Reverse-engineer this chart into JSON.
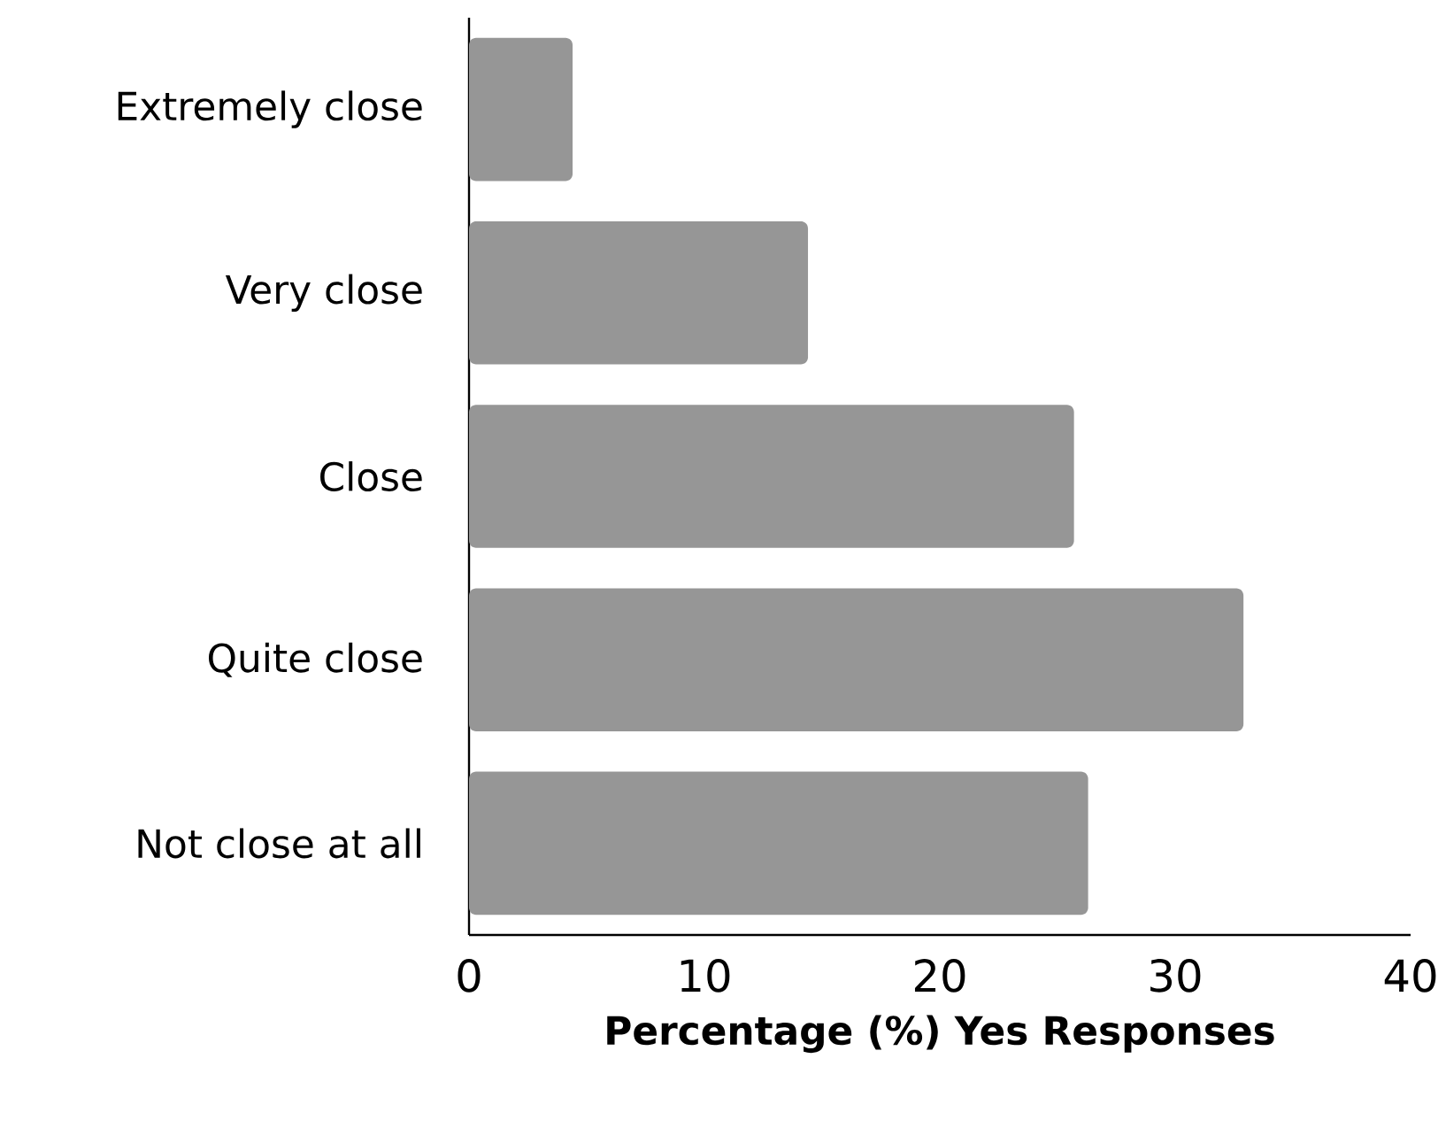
{
  "chart_data": {
    "type": "bar",
    "orientation": "horizontal",
    "xlabel": "Percentage (%) Yes Responses",
    "categories": [
      "Extremely close",
      "Very close",
      "Close",
      "Quite close",
      "Not close at all"
    ],
    "values": [
      4.4,
      14.4,
      25.7,
      32.9,
      26.3
    ],
    "color": "#969696",
    "xlim": [
      0,
      40
    ],
    "xticks": [
      0,
      10,
      20,
      30,
      40
    ]
  }
}
